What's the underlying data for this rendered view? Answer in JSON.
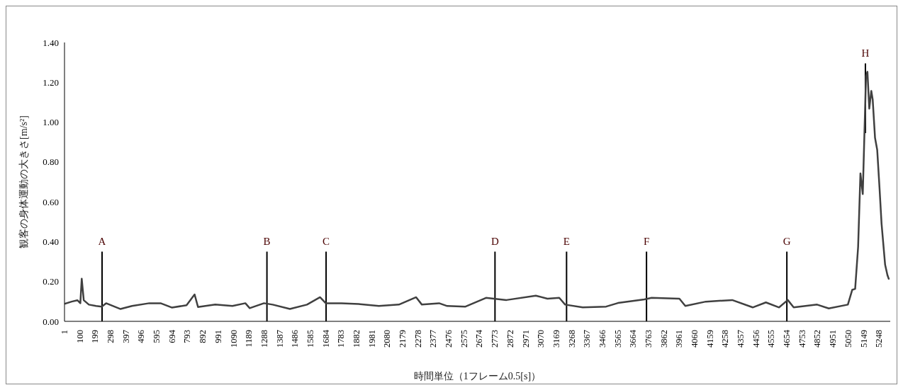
{
  "chart_data": {
    "type": "line",
    "xlabel": "時間単位（1フレーム0.5[s]）",
    "ylabel": "観客の身体運動の大きさ[m/s²]",
    "x": [
      1,
      47,
      84,
      103,
      112,
      125,
      158,
      204,
      241,
      269,
      362,
      436,
      547,
      620,
      694,
      787,
      839,
      861,
      972,
      1083,
      1166,
      1194,
      1286,
      1342,
      1453,
      1563,
      1647,
      1684,
      1785,
      1896,
      2026,
      2155,
      2266,
      2303,
      2414,
      2466,
      2584,
      2716,
      2848,
      3037,
      3112,
      3188,
      3226,
      3339,
      3490,
      3566,
      3736,
      3783,
      3962,
      4000,
      4132,
      4302,
      4434,
      4519,
      4604,
      4660,
      4698,
      4849,
      4924,
      5047,
      5075,
      5094,
      5113,
      5128,
      5143,
      5154,
      5164,
      5173,
      5185,
      5198,
      5207,
      5222,
      5236,
      5251,
      5264,
      5287,
      5302,
      5312
    ],
    "series": [
      {
        "color": "#404040",
        "values": [
          0.088,
          0.099,
          0.106,
          0.091,
          0.214,
          0.106,
          0.084,
          0.077,
          0.074,
          0.091,
          0.062,
          0.077,
          0.091,
          0.091,
          0.069,
          0.081,
          0.135,
          0.072,
          0.084,
          0.077,
          0.091,
          0.066,
          0.091,
          0.084,
          0.062,
          0.084,
          0.121,
          0.091,
          0.091,
          0.087,
          0.077,
          0.084,
          0.121,
          0.084,
          0.091,
          0.077,
          0.074,
          0.118,
          0.107,
          0.129,
          0.114,
          0.118,
          0.084,
          0.07,
          0.074,
          0.092,
          0.11,
          0.118,
          0.114,
          0.077,
          0.099,
          0.107,
          0.07,
          0.095,
          0.07,
          0.107,
          0.07,
          0.084,
          0.065,
          0.084,
          0.158,
          0.163,
          0.373,
          0.743,
          0.639,
          0.95,
          1.231,
          1.253,
          1.068,
          1.157,
          1.113,
          0.921,
          0.861,
          0.669,
          0.491,
          0.284,
          0.232,
          0.21
        ]
      }
    ],
    "xlim": [
      1,
      5320
    ],
    "xticks": [
      1,
      100,
      199,
      298,
      397,
      496,
      595,
      694,
      793,
      892,
      991,
      1090,
      1189,
      1288,
      1387,
      1486,
      1585,
      1684,
      1783,
      1882,
      1981,
      2080,
      2179,
      2278,
      2377,
      2476,
      2575,
      2674,
      2773,
      2872,
      2971,
      3070,
      3169,
      3268,
      3367,
      3466,
      3565,
      3664,
      3763,
      3862,
      3961,
      4060,
      4159,
      4258,
      4357,
      4456,
      4555,
      4654,
      4753,
      4852,
      4951,
      5050,
      5149,
      5248
    ],
    "ylim": [
      0,
      1.4
    ],
    "yticks": [
      {
        "value": 0,
        "label": "0.00"
      },
      {
        "value": 0.2,
        "label": "0.20"
      },
      {
        "value": 0.4,
        "label": "0.40"
      },
      {
        "value": 0.6,
        "label": "0.60"
      },
      {
        "value": 0.8,
        "label": "0.80"
      },
      {
        "value": 1.0,
        "label": "1.00"
      },
      {
        "value": 1.2,
        "label": "1.20"
      },
      {
        "value": 1.4,
        "label": "1.40"
      }
    ],
    "grid": false,
    "legend": false,
    "marker": "none",
    "line_style": "solid",
    "ref_lines": [
      {
        "axis": "x",
        "value": 243,
        "label": "A",
        "color": "#000000"
      },
      {
        "axis": "x",
        "value": 1305,
        "label": "B",
        "color": "#000000"
      },
      {
        "axis": "x",
        "value": 1686,
        "label": "C",
        "color": "#000000"
      },
      {
        "axis": "x",
        "value": 2774,
        "label": "D",
        "color": "#000000"
      },
      {
        "axis": "x",
        "value": 3235,
        "label": "E",
        "color": "#000000"
      },
      {
        "axis": "x",
        "value": 3750,
        "label": "F",
        "color": "#000000"
      },
      {
        "axis": "x",
        "value": 4654,
        "label": "G",
        "color": "#000000"
      },
      {
        "axis": "x",
        "value": 5160,
        "label": "H",
        "color": "#000000"
      }
    ]
  }
}
